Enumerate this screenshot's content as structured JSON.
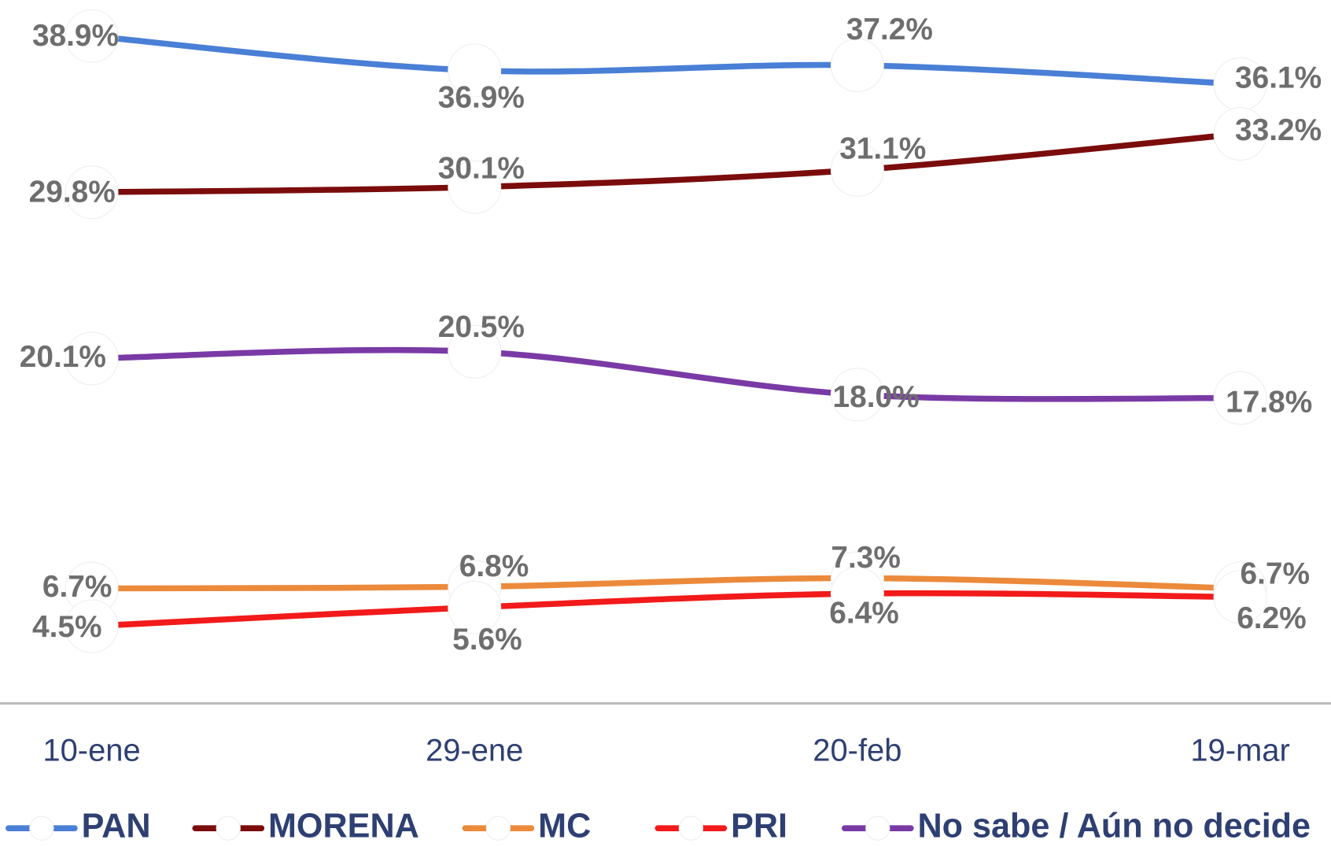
{
  "chart_data": {
    "type": "line",
    "categories": [
      "10-ene",
      "29-ene",
      "20-feb",
      "19-mar"
    ],
    "ylim": [
      0,
      41
    ],
    "legend": "bottom",
    "series": [
      {
        "name": "PAN",
        "color": "#4a7fd6",
        "values": [
          38.9,
          36.9,
          37.2,
          36.1
        ],
        "value_labels": [
          "38.9%",
          "36.9%",
          "37.2%",
          "36.1%"
        ]
      },
      {
        "name": "MORENA",
        "color": "#7b0c0c",
        "values": [
          29.8,
          30.1,
          31.1,
          33.2
        ],
        "value_labels": [
          "29.8%",
          "30.1%",
          "31.1%",
          "33.2%"
        ]
      },
      {
        "name": "MC",
        "color": "#ec8a3c",
        "values": [
          6.7,
          6.8,
          7.3,
          6.7
        ],
        "value_labels": [
          "6.7%",
          "6.8%",
          "7.3%",
          "6.7%"
        ]
      },
      {
        "name": "PRI",
        "color": "#f21a1a",
        "values": [
          4.5,
          5.6,
          6.4,
          6.2
        ],
        "value_labels": [
          "4.5%",
          "5.6%",
          "6.4%",
          "6.2%"
        ]
      },
      {
        "name": "No sabe / Aún no decide",
        "color": "#7a3aa6",
        "values": [
          20.1,
          20.5,
          18.0,
          17.8
        ],
        "value_labels": [
          "20.1%",
          "20.5%",
          "18.0%",
          "17.8%"
        ]
      }
    ]
  }
}
